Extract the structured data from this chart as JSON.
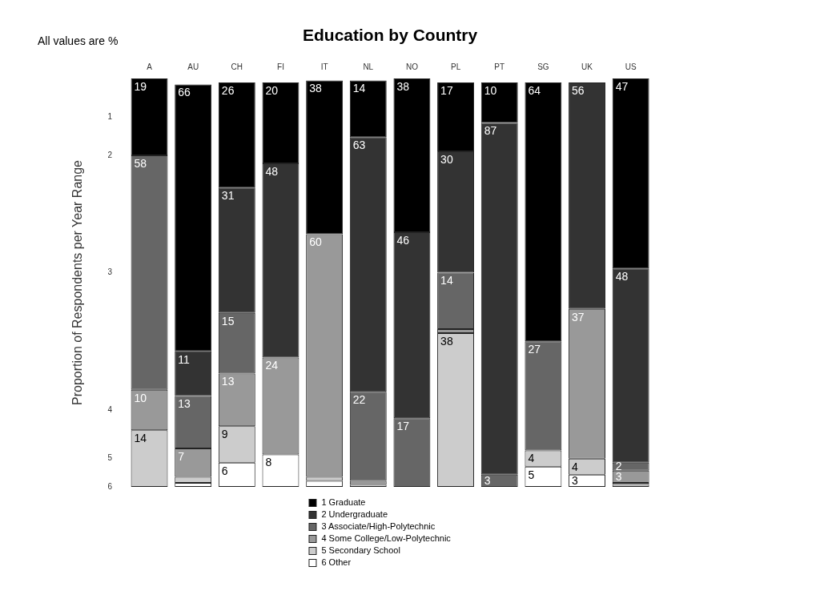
{
  "chart_data": {
    "type": "bar",
    "stacked": true,
    "title": "Education by Country",
    "ylabel": "Proportion of Respondents per Year Range",
    "annotations": [
      "All values are %",
      "1",
      "2",
      "3",
      "4",
      "5",
      "6"
    ],
    "categories": [
      "A",
      "AU",
      "CH",
      "FI",
      "IT",
      "NL",
      "NO",
      "PL",
      "PT",
      "SG",
      "UK",
      "US"
    ],
    "legend": "bottom",
    "series": [
      {
        "name": "6 Other",
        "color": "#ffffff",
        "values": [
          0,
          1,
          6,
          8,
          1.5,
          0.5,
          0,
          0,
          0,
          5,
          3,
          0.5
        ],
        "value_labels": [
          null,
          null,
          "6",
          "8",
          null,
          null,
          null,
          null,
          null,
          "5",
          "3",
          null
        ]
      },
      {
        "name": "5 Secondary School",
        "color": "#cccccc",
        "values": [
          14,
          1.5,
          9,
          0,
          1,
          0,
          0,
          38,
          0,
          4,
          4,
          0.5
        ],
        "value_labels": [
          "14",
          null,
          "9",
          null,
          null,
          null,
          null,
          "38",
          null,
          "4",
          "4",
          null
        ]
      },
      {
        "name": "4 Some College/Low-Polytechnic",
        "color": "#999999",
        "values": [
          10,
          7,
          13,
          24,
          60,
          1,
          0,
          1,
          0,
          0,
          37,
          3
        ],
        "value_labels": [
          "10",
          "7",
          "13",
          "24",
          "60",
          null,
          null,
          null,
          null,
          null,
          "37",
          "3"
        ]
      },
      {
        "name": "3 Associate/High-Polytechnic",
        "color": "#666666",
        "values": [
          58,
          13,
          15,
          0,
          0,
          22,
          17,
          14,
          3,
          27,
          0,
          2
        ],
        "value_labels": [
          "58",
          "13",
          "15",
          null,
          null,
          "22",
          "17",
          "14",
          "3",
          "27",
          null,
          "2"
        ]
      },
      {
        "name": "2 Undergraduate",
        "color": "#333333",
        "values": [
          0,
          11,
          31,
          48,
          0,
          63,
          46,
          30,
          87,
          0,
          56,
          48
        ],
        "value_labels": [
          null,
          "11",
          "31",
          "48",
          null,
          "63",
          "46",
          "30",
          "87",
          null,
          "56",
          "48"
        ]
      },
      {
        "name": "1 Graduate",
        "color": "#000000",
        "values": [
          19,
          66,
          26,
          20,
          38,
          14,
          38,
          17,
          10,
          64,
          0,
          47
        ],
        "value_labels": [
          "19",
          "66",
          "26",
          "20",
          "38",
          "14",
          "38",
          "17",
          "10",
          "64",
          null,
          "47"
        ]
      }
    ]
  }
}
